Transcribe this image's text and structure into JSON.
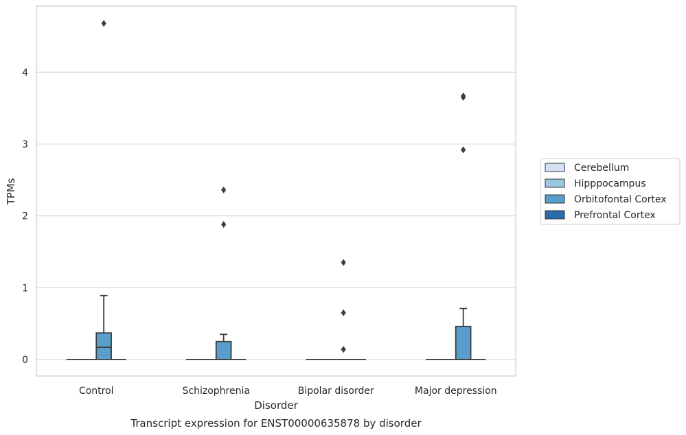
{
  "caption": "Transcript expression for ENST00000635878 by disorder",
  "chart_data": {
    "type": "box",
    "xlabel": "Disorder",
    "ylabel": "TPMs",
    "ylim": [
      -0.23,
      4.92
    ],
    "yticks": [
      0,
      1,
      2,
      3,
      4
    ],
    "grid": "horizontal",
    "legend_position": "right",
    "categories": [
      "Control",
      "Schizophrenia",
      "Bipolar disorder",
      "Major depression"
    ],
    "series": [
      {
        "name": "Cerebellum",
        "color": "#d1e2f2"
      },
      {
        "name": "Hipppocampus",
        "color": "#9ac8e0"
      },
      {
        "name": "Orbitofontal Cortex",
        "color": "#5a9fcc"
      },
      {
        "name": "Prefrontal Cortex",
        "color": "#2b6ba8"
      }
    ],
    "boxes": [
      {
        "category": "Control",
        "series": "Cerebellum",
        "min": 0,
        "q1": 0,
        "median": 0,
        "q3": 0,
        "max": 0,
        "outliers": []
      },
      {
        "category": "Control",
        "series": "Hipppocampus",
        "min": 0,
        "q1": 0,
        "median": 0,
        "q3": 0,
        "max": 0,
        "outliers": []
      },
      {
        "category": "Control",
        "series": "Orbitofontal Cortex",
        "min": 0,
        "q1": 0,
        "median": 0.17,
        "q3": 0.37,
        "max": 0.89,
        "outliers": [
          4.68
        ]
      },
      {
        "category": "Control",
        "series": "Prefrontal Cortex",
        "min": 0,
        "q1": 0,
        "median": 0,
        "q3": 0,
        "max": 0,
        "outliers": []
      },
      {
        "category": "Schizophrenia",
        "series": "Cerebellum",
        "min": 0,
        "q1": 0,
        "median": 0,
        "q3": 0,
        "max": 0,
        "outliers": []
      },
      {
        "category": "Schizophrenia",
        "series": "Hipppocampus",
        "min": 0,
        "q1": 0,
        "median": 0,
        "q3": 0,
        "max": 0,
        "outliers": []
      },
      {
        "category": "Schizophrenia",
        "series": "Orbitofontal Cortex",
        "min": 0,
        "q1": 0,
        "median": 0,
        "q3": 0.25,
        "max": 0.35,
        "outliers": [
          2.36,
          1.88
        ]
      },
      {
        "category": "Schizophrenia",
        "series": "Prefrontal Cortex",
        "min": 0,
        "q1": 0,
        "median": 0,
        "q3": 0,
        "max": 0,
        "outliers": []
      },
      {
        "category": "Bipolar disorder",
        "series": "Cerebellum",
        "min": 0,
        "q1": 0,
        "median": 0,
        "q3": 0,
        "max": 0,
        "outliers": []
      },
      {
        "category": "Bipolar disorder",
        "series": "Hipppocampus",
        "min": 0,
        "q1": 0,
        "median": 0,
        "q3": 0,
        "max": 0,
        "outliers": []
      },
      {
        "category": "Bipolar disorder",
        "series": "Orbitofontal Cortex",
        "min": 0,
        "q1": 0,
        "median": 0,
        "q3": 0,
        "max": 0,
        "outliers": [
          1.35,
          0.65,
          0.14
        ]
      },
      {
        "category": "Bipolar disorder",
        "series": "Prefrontal Cortex",
        "min": 0,
        "q1": 0,
        "median": 0,
        "q3": 0,
        "max": 0,
        "outliers": []
      },
      {
        "category": "Major depression",
        "series": "Cerebellum",
        "min": 0,
        "q1": 0,
        "median": 0,
        "q3": 0,
        "max": 0,
        "outliers": []
      },
      {
        "category": "Major depression",
        "series": "Hipppocampus",
        "min": 0,
        "q1": 0,
        "median": 0,
        "q3": 0,
        "max": 0,
        "outliers": []
      },
      {
        "category": "Major depression",
        "series": "Orbitofontal Cortex",
        "min": 0,
        "q1": 0,
        "median": 0,
        "q3": 0.46,
        "max": 0.71,
        "outliers": [
          2.92,
          3.65,
          3.67
        ]
      },
      {
        "category": "Major depression",
        "series": "Prefrontal Cortex",
        "min": 0,
        "q1": 0,
        "median": 0,
        "q3": 0,
        "max": 0,
        "outliers": []
      }
    ]
  }
}
